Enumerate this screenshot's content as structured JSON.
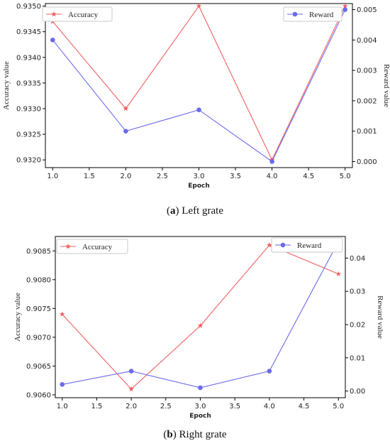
{
  "chart_data": [
    {
      "id": "a",
      "type": "line",
      "caption_letter": "a",
      "caption_text": "Left grate",
      "xlabel": "Epoch",
      "ylabel": "Accuracy value",
      "y2label": "Reward value",
      "x": [
        1.0,
        2.0,
        3.0,
        4.0,
        5.0
      ],
      "xlim": [
        0.9,
        5.1
      ],
      "xticks": [
        "1.0",
        "1.5",
        "2.0",
        "2.5",
        "3.0",
        "3.5",
        "4.0",
        "4.5",
        "5.0"
      ],
      "ylim": [
        0.93185,
        0.93505
      ],
      "yticks": [
        "0.9320",
        "0.9325",
        "0.9330",
        "0.9335",
        "0.9340",
        "0.9345",
        "0.9350"
      ],
      "y2lim": [
        -0.0002,
        0.0052
      ],
      "y2ticks": [
        "0.000",
        "0.001",
        "0.002",
        "0.003",
        "0.004",
        "0.005"
      ],
      "series": [
        {
          "name": "Accuracy",
          "axis": "left",
          "color": "#f06060",
          "marker": "star",
          "values": [
            0.9347,
            0.933,
            0.935,
            0.932,
            0.935
          ]
        },
        {
          "name": "Reward",
          "axis": "right",
          "color": "#6a6aee",
          "marker": "circle",
          "values": [
            0.004,
            0.001,
            0.0017,
            0.0,
            0.005
          ]
        }
      ],
      "legend": "top-left and top-right"
    },
    {
      "id": "b",
      "type": "line",
      "caption_letter": "b",
      "caption_text": "Right grate",
      "xlabel": "Epoch",
      "ylabel": "Accuracy value",
      "y2label": "Reward value",
      "x": [
        1.0,
        2.0,
        3.0,
        4.0,
        5.0
      ],
      "xlim": [
        0.9,
        5.1
      ],
      "xticks": [
        "1.0",
        "1.5",
        "2.0",
        "2.5",
        "3.0",
        "3.5",
        "4.0",
        "4.5",
        "5.0"
      ],
      "ylim": [
        0.90595,
        0.90875
      ],
      "yticks": [
        "0.9060",
        "0.9065",
        "0.9070",
        "0.9075",
        "0.9080",
        "0.9085"
      ],
      "y2lim": [
        -0.002,
        0.0465
      ],
      "y2ticks": [
        "0.00",
        "0.01",
        "0.02",
        "0.03",
        "0.04"
      ],
      "series": [
        {
          "name": "Accuracy",
          "axis": "left",
          "color": "#f06060",
          "marker": "star",
          "values": [
            0.9074,
            0.9061,
            0.9072,
            0.9086,
            0.9081
          ]
        },
        {
          "name": "Reward",
          "axis": "right",
          "color": "#6a6aee",
          "marker": "circle",
          "values": [
            0.002,
            0.006,
            0.001,
            0.006,
            0.045
          ]
        }
      ],
      "legend": "top-left and top-right"
    }
  ]
}
